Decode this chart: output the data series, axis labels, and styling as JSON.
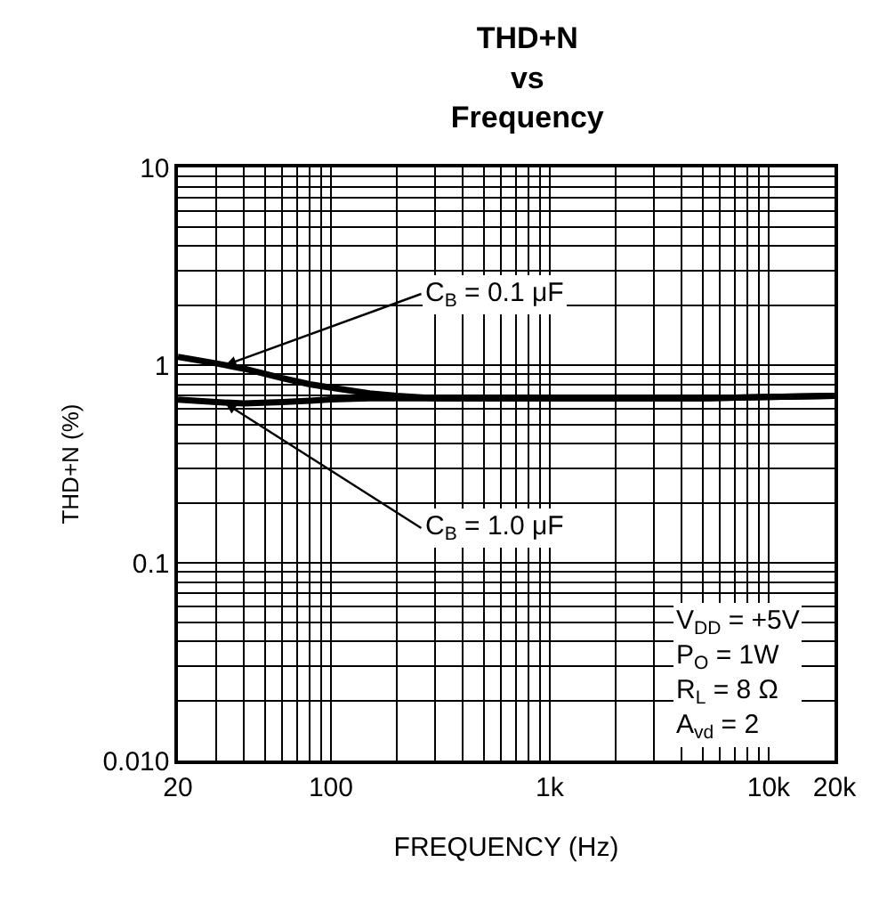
{
  "chart_data": {
    "type": "line",
    "title": "THD+N\nvs\nFrequency",
    "xlabel": "FREQUENCY (Hz)",
    "ylabel": "THD+N (%)",
    "log": "xy",
    "grid": true,
    "legend": false,
    "x": [
      20,
      30,
      40,
      60,
      80,
      100,
      150,
      200,
      300,
      500,
      1000,
      2000,
      5000,
      10000,
      20000
    ],
    "series": [
      {
        "color": "#000000",
        "values": [
          1.1,
          1.02,
          0.96,
          0.86,
          0.8,
          0.77,
          0.72,
          0.7,
          0.68,
          0.68,
          0.68,
          0.68,
          0.68,
          0.69,
          0.7
        ]
      },
      {
        "color": "#000000",
        "values": [
          0.67,
          0.65,
          0.64,
          0.65,
          0.66,
          0.67,
          0.68,
          0.68,
          0.68,
          0.68,
          0.68,
          0.68,
          0.68,
          0.69,
          0.7
        ]
      }
    ],
    "xlim": [
      20,
      20000
    ],
    "ylim": [
      0.01,
      10
    ],
    "xticks": [
      20,
      100,
      {
        "value": 1000,
        "label": "1k"
      },
      {
        "value": 10000,
        "label": "10k"
      },
      {
        "value": 20000,
        "label": "20k"
      }
    ],
    "yticks": [
      {
        "value": 0.01,
        "label": "0.010"
      },
      0.1,
      1,
      10
    ],
    "annotations": [
      {
        "text": "C$_{B}$ = 0.1 μF",
        "x": 33,
        "y": 1.0
      },
      {
        "text": "C$_{B}$ = 1.0 μF",
        "x": 33,
        "y": 0.64
      },
      "V$_{DD}$ = +5V\nP$_{O}$ = 1W\nR$_{L}$ = 8 Ω\nA$_{vd}$ = 2"
    ]
  }
}
